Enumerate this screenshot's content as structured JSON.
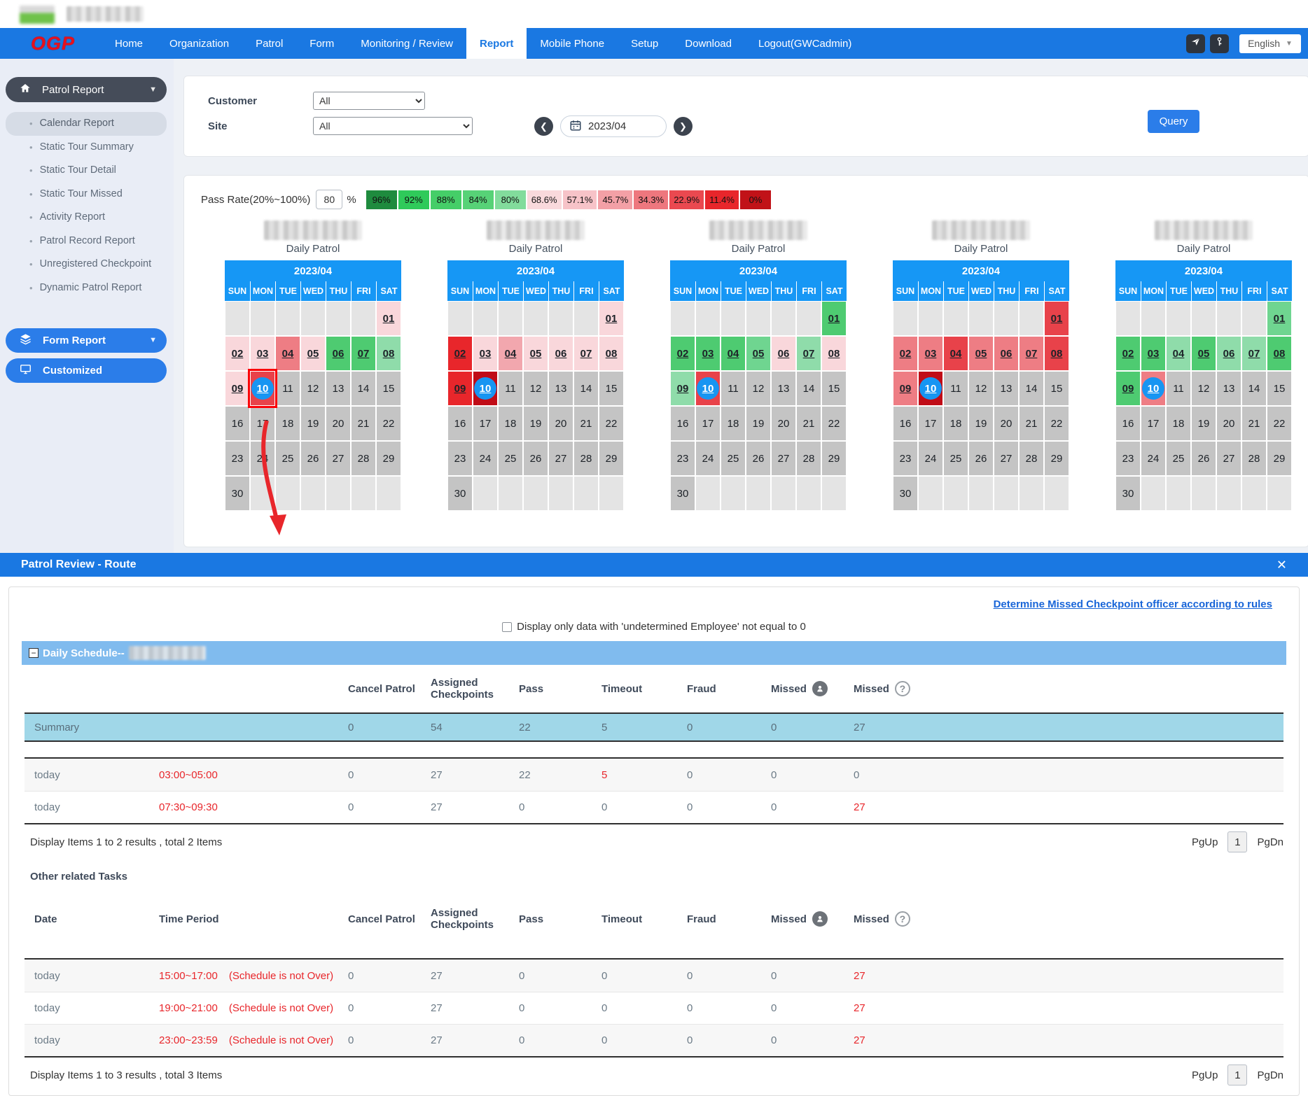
{
  "navbar": {
    "logo": "OGP",
    "items": [
      "Home",
      "Organization",
      "Patrol",
      "Form",
      "Monitoring / Review",
      "Report",
      "Mobile Phone",
      "Setup",
      "Download",
      "Logout(GWCadmin)"
    ],
    "active": "Report",
    "language": "English"
  },
  "sidebar": {
    "header": "Patrol Report",
    "items": [
      "Calendar Report",
      "Static Tour Summary",
      "Static Tour Detail",
      "Static Tour Missed",
      "Activity Report",
      "Patrol Record Report",
      "Unregistered Checkpoint",
      "Dynamic Patrol Report"
    ],
    "active_item": "Calendar Report",
    "form_report": "Form Report",
    "customized": "Customized"
  },
  "filters": {
    "customer_label": "Customer",
    "customer_value": "All",
    "site_label": "Site",
    "site_value": "All",
    "date_value": "2023/04",
    "query": "Query"
  },
  "pass_rate": {
    "label": "Pass Rate(20%~100%)",
    "value": "80",
    "unit": "%",
    "badges": [
      {
        "label": "96%",
        "color": "#1f8b3e"
      },
      {
        "label": "92%",
        "color": "#2fca5a"
      },
      {
        "label": "88%",
        "color": "#45ce68"
      },
      {
        "label": "84%",
        "color": "#57d277"
      },
      {
        "label": "80%",
        "color": "#82dc9c"
      },
      {
        "label": "68.6%",
        "color": "#f9d9dc"
      },
      {
        "label": "57.1%",
        "color": "#f7c3c8"
      },
      {
        "label": "45.7%",
        "color": "#f3a0a6"
      },
      {
        "label": "34.3%",
        "color": "#ee777e"
      },
      {
        "label": "22.9%",
        "color": "#ea4950"
      },
      {
        "label": "11.4%",
        "color": "#e8262b"
      },
      {
        "label": "0%",
        "color": "#c11218"
      }
    ]
  },
  "calendar": {
    "month": "2023/04",
    "subtitle": "Daily Patrol",
    "day_headers": [
      "SUN",
      "MON",
      "TUE",
      "WED",
      "THU",
      "FRI",
      "SAT"
    ],
    "palette": {
      "pink": "#f9d7db",
      "medpink": "#f2a7ae",
      "salmon": "#ee7d84",
      "strongred": "#e8424a",
      "red": "#e8262b",
      "darkred": "#c00c17",
      "green": "#4ecb71",
      "midgreen": "#6fd590",
      "lightgreen": "#8fdcaa",
      "gray": "#c4c4c4",
      "empty": "#e4e4e4"
    },
    "items": [
      {
        "days": {
          "01": "pink",
          "02": "pink",
          "03": "pink",
          "04": "salmon",
          "05": "pink",
          "06": "green",
          "07": "green",
          "08": "lightgreen",
          "09": "pink",
          "10": "strongred"
        },
        "selected_day": 10
      },
      {
        "days": {
          "01": "pink",
          "02": "red",
          "03": "pink",
          "04": "medpink",
          "05": "pink",
          "06": "pink",
          "07": "pink",
          "08": "pink",
          "09": "red",
          "10": "darkred"
        }
      },
      {
        "days": {
          "01": "green",
          "02": "green",
          "03": "green",
          "04": "green",
          "05": "midgreen",
          "06": "pink",
          "07": "lightgreen",
          "08": "pink",
          "09": "lightgreen",
          "10": "strongred"
        }
      },
      {
        "days": {
          "01": "strongred",
          "02": "salmon",
          "03": "salmon",
          "04": "strongred",
          "05": "salmon",
          "06": "salmon",
          "07": "salmon",
          "08": "strongred",
          "09": "salmon",
          "10": "darkred"
        }
      },
      {
        "days": {
          "01": "midgreen",
          "02": "green",
          "03": "green",
          "04": "lightgreen",
          "05": "green",
          "06": "lightgreen",
          "07": "lightgreen",
          "08": "green",
          "09": "green",
          "10": "salmon"
        }
      }
    ]
  },
  "modal": {
    "title": "Patrol Review - Route",
    "close": "✕",
    "rules_link": "Determine Missed Checkpoint officer according to rules",
    "checkbox_label": "Display only data with 'undetermined Employee' not equal to 0",
    "schedule_label": "Daily Schedule--",
    "metric_headers": [
      "Cancel Patrol",
      "Assigned Checkpoints",
      "Pass",
      "Timeout",
      "Fraud",
      "Missed",
      "Missed"
    ],
    "daily": {
      "summary_label": "Summary",
      "summary_values": [
        "0",
        "54",
        "22",
        "5",
        "0",
        "0",
        "27"
      ],
      "rows": [
        {
          "date": "today",
          "time": "03:00~05:00",
          "note": "",
          "values": [
            "0",
            "27",
            "22",
            "5",
            "0",
            "0",
            "0"
          ],
          "red": [
            3
          ]
        },
        {
          "date": "today",
          "time": "07:30~09:30",
          "note": "",
          "values": [
            "0",
            "27",
            "0",
            "0",
            "0",
            "0",
            "27"
          ],
          "red": [
            6
          ]
        }
      ],
      "footer": "Display Items 1 to 2 results , total 2 Items"
    },
    "other": {
      "title": "Other related Tasks",
      "date_header": "Date",
      "time_header": "Time Period",
      "rows": [
        {
          "date": "today",
          "time": "15:00~17:00",
          "note": "(Schedule is not Over)",
          "values": [
            "0",
            "27",
            "0",
            "0",
            "0",
            "0",
            "27"
          ],
          "red": [
            6
          ]
        },
        {
          "date": "today",
          "time": "19:00~21:00",
          "note": "(Schedule is not Over)",
          "values": [
            "0",
            "27",
            "0",
            "0",
            "0",
            "0",
            "27"
          ],
          "red": [
            6
          ]
        },
        {
          "date": "today",
          "time": "23:00~23:59",
          "note": "(Schedule is not Over)",
          "values": [
            "0",
            "27",
            "0",
            "0",
            "0",
            "0",
            "27"
          ],
          "red": [
            6
          ]
        }
      ],
      "footer": "Display Items 1 to 3 results , total 3 Items"
    },
    "pgup": "PgUp",
    "page": "1",
    "pgdn": "PgDn"
  },
  "colors": {
    "nav_blue": "#1a78e2",
    "calendar_header_blue": "#1697f5",
    "accent_blue": "#2b7de9",
    "summary_row": "#a0d7e8",
    "schedule_band": "#80bbee",
    "red_text": "#e8262b",
    "selected_cell_border": "#fb0007"
  }
}
